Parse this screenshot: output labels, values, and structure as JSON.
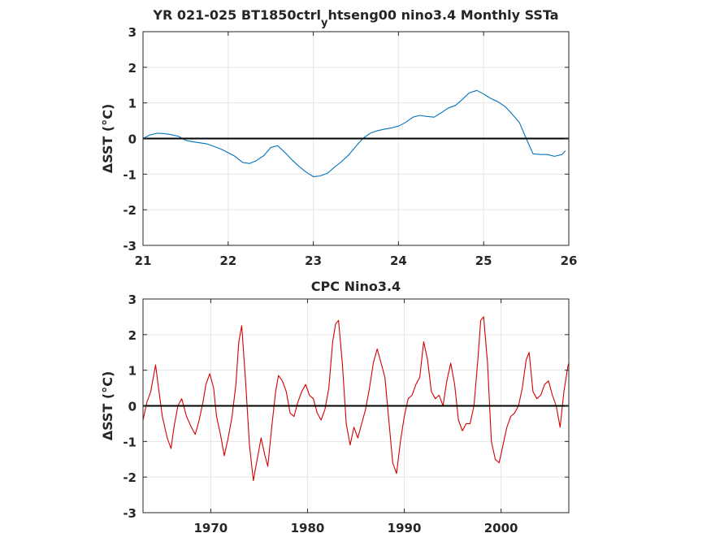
{
  "chart_data": [
    {
      "type": "line",
      "title": "YR 021-025 BT1850ctrl_htseng00 nino3.4 Monthly SSTa",
      "title_parts": [
        "YR 021-025 BT1850ctrl",
        "y",
        "htseng00 nino3.4 Monthly SSTa"
      ],
      "xlabel": "",
      "ylabel": "ΔSST (°C)",
      "xlim": [
        21,
        26
      ],
      "ylim": [
        -3,
        3
      ],
      "xticks": [
        21,
        22,
        23,
        24,
        25,
        26
      ],
      "yticks": [
        -3,
        -2,
        -1,
        0,
        1,
        2,
        3
      ],
      "grid": true,
      "zero_line": true,
      "series": [
        {
          "color": "#0072BD",
          "x": [
            21.0,
            21.08,
            21.17,
            21.25,
            21.33,
            21.42,
            21.5,
            21.58,
            21.67,
            21.75,
            21.83,
            21.92,
            22.0,
            22.08,
            22.17,
            22.25,
            22.33,
            22.42,
            22.5,
            22.58,
            22.67,
            22.75,
            22.83,
            22.92,
            23.0,
            23.08,
            23.17,
            23.25,
            23.33,
            23.42,
            23.5,
            23.58,
            23.67,
            23.75,
            23.83,
            23.92,
            24.0,
            24.08,
            24.17,
            24.25,
            24.33,
            24.42,
            24.5,
            24.58,
            24.67,
            24.75,
            24.83,
            24.92,
            25.0,
            25.08,
            25.17,
            25.25,
            25.33,
            25.42,
            25.5,
            25.58,
            25.67,
            25.75,
            25.83,
            25.92,
            25.96
          ],
          "y": [
            0.0,
            0.1,
            0.15,
            0.14,
            0.11,
            0.06,
            -0.05,
            -0.09,
            -0.12,
            -0.15,
            -0.22,
            -0.3,
            -0.4,
            -0.5,
            -0.67,
            -0.7,
            -0.62,
            -0.48,
            -0.25,
            -0.2,
            -0.4,
            -0.6,
            -0.78,
            -0.95,
            -1.07,
            -1.05,
            -0.97,
            -0.8,
            -0.65,
            -0.45,
            -0.22,
            0.0,
            0.15,
            0.22,
            0.26,
            0.3,
            0.35,
            0.45,
            0.6,
            0.65,
            0.62,
            0.6,
            0.72,
            0.85,
            0.93,
            1.1,
            1.28,
            1.35,
            1.25,
            1.13,
            1.03,
            0.9,
            0.7,
            0.45,
            0.0,
            -0.43,
            -0.45,
            -0.45,
            -0.5,
            -0.45,
            -0.35
          ]
        }
      ]
    },
    {
      "type": "line",
      "title": "CPC Nino3.4",
      "xlabel": "",
      "ylabel": "ΔSST (°C)",
      "xlim": [
        1963,
        2007
      ],
      "ylim": [
        -3,
        3
      ],
      "xticks": [
        1970,
        1980,
        1990,
        2000
      ],
      "yticks": [
        -3,
        -2,
        -1,
        0,
        1,
        2,
        3
      ],
      "grid": true,
      "zero_line": true,
      "series": [
        {
          "color": "#D40000",
          "x": [
            1963.0,
            1963.4,
            1963.8,
            1964.3,
            1964.6,
            1965.0,
            1965.5,
            1965.9,
            1966.2,
            1966.6,
            1967.0,
            1967.5,
            1968.0,
            1968.4,
            1968.8,
            1969.2,
            1969.5,
            1969.9,
            1970.3,
            1970.6,
            1971.0,
            1971.4,
            1971.8,
            1972.2,
            1972.6,
            1972.9,
            1973.2,
            1973.6,
            1974.0,
            1974.4,
            1974.8,
            1975.2,
            1975.6,
            1975.9,
            1976.3,
            1976.7,
            1977.0,
            1977.4,
            1977.8,
            1978.2,
            1978.6,
            1979.0,
            1979.4,
            1979.8,
            1980.2,
            1980.6,
            1981.0,
            1981.4,
            1981.8,
            1982.2,
            1982.6,
            1982.9,
            1983.2,
            1983.6,
            1984.0,
            1984.4,
            1984.8,
            1985.2,
            1985.6,
            1986.0,
            1986.4,
            1986.8,
            1987.2,
            1987.6,
            1988.0,
            1988.4,
            1988.8,
            1989.2,
            1989.6,
            1990.0,
            1990.4,
            1990.8,
            1991.2,
            1991.6,
            1992.0,
            1992.4,
            1992.8,
            1993.2,
            1993.6,
            1994.0,
            1994.4,
            1994.8,
            1995.2,
            1995.6,
            1996.0,
            1996.4,
            1996.8,
            1997.2,
            1997.6,
            1997.9,
            1998.2,
            1998.6,
            1999.0,
            1999.4,
            1999.8,
            2000.2,
            2000.6,
            2001.0,
            2001.4,
            2001.8,
            2002.2,
            2002.6,
            2002.9,
            2003.3,
            2003.7,
            2004.1,
            2004.5,
            2004.9,
            2005.3,
            2005.7,
            2006.1,
            2006.5,
            2006.9,
            2007.0
          ],
          "y": [
            -0.4,
            0.1,
            0.4,
            1.15,
            0.5,
            -0.3,
            -0.9,
            -1.2,
            -0.6,
            0.0,
            0.2,
            -0.3,
            -0.6,
            -0.8,
            -0.4,
            0.1,
            0.6,
            0.9,
            0.5,
            -0.3,
            -0.8,
            -1.4,
            -0.9,
            -0.3,
            0.6,
            1.8,
            2.25,
            0.7,
            -1.1,
            -2.1,
            -1.5,
            -0.9,
            -1.4,
            -1.7,
            -0.6,
            0.4,
            0.85,
            0.7,
            0.4,
            -0.2,
            -0.3,
            0.1,
            0.4,
            0.6,
            0.3,
            0.2,
            -0.2,
            -0.4,
            -0.1,
            0.5,
            1.8,
            2.3,
            2.4,
            1.2,
            -0.5,
            -1.1,
            -0.6,
            -0.9,
            -0.5,
            -0.1,
            0.5,
            1.2,
            1.6,
            1.2,
            0.8,
            -0.4,
            -1.6,
            -1.9,
            -1.0,
            -0.3,
            0.2,
            0.3,
            0.6,
            0.8,
            1.8,
            1.3,
            0.4,
            0.2,
            0.3,
            0.0,
            0.7,
            1.2,
            0.6,
            -0.4,
            -0.7,
            -0.5,
            -0.5,
            0.0,
            1.3,
            2.4,
            2.5,
            1.2,
            -1.0,
            -1.5,
            -1.6,
            -1.1,
            -0.6,
            -0.3,
            -0.2,
            0.0,
            0.5,
            1.3,
            1.5,
            0.4,
            0.2,
            0.3,
            0.6,
            0.7,
            0.3,
            0.0,
            -0.6,
            0.4,
            1.1,
            1.2
          ]
        }
      ]
    }
  ]
}
